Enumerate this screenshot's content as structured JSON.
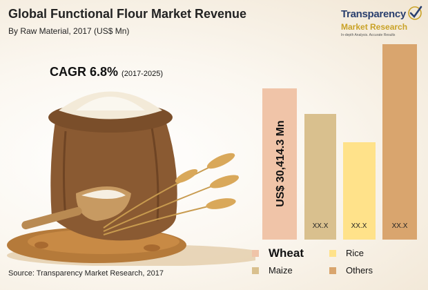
{
  "header": {
    "title": "Global Functional Flour Market Revenue",
    "subtitle": "By Raw Material, 2017 (US$ Mn)"
  },
  "cagr": {
    "label": "CAGR 6.8%",
    "period": "(2017-2025)"
  },
  "logo": {
    "line1": "Transparency",
    "line2": "Market Research",
    "tagline": "In-depth Analysis. Accurate Results"
  },
  "source": "Source: Transparency Market Research, 2017",
  "colors": {
    "wheat": "#f0c4a8",
    "maize": "#d9c08e",
    "rice": "#ffe28a",
    "others": "#d9a56e",
    "logo_blue": "#2a3f6e",
    "logo_gold": "#c9a227"
  },
  "chart_data": {
    "type": "bar",
    "categories": [
      "Wheat",
      "Maize",
      "Rice",
      "Others"
    ],
    "values": [
      null,
      null,
      null,
      null
    ],
    "value_labels": [
      "US$ 30,414.3 Mn",
      "XX.X",
      "XX.X",
      "XX.X"
    ],
    "legend": [
      "Wheat",
      "Maize",
      "Rice",
      "Others"
    ],
    "legend_placement": "bottom",
    "grid": false
  }
}
